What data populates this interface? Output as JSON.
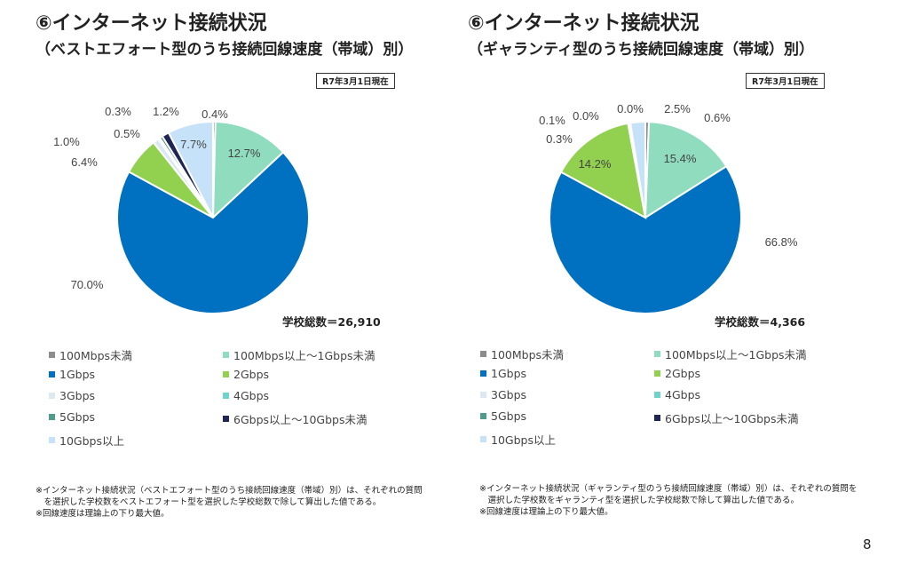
{
  "colors": [
    "#8c8c8c",
    "#8fdcbf",
    "#0070c0",
    "#92d050",
    "#dde9f2",
    "#6fd3cc",
    "#4e9c8c",
    "#1f2654",
    "#c6e2f8"
  ],
  "legend_labels": [
    "100Mbps未満",
    "100Mbps以上～1Gbps未満",
    "1Gbps",
    "2Gbps",
    "3Gbps",
    "4Gbps",
    "5Gbps",
    "6Gbps以上～10Gbps未満",
    "10Gbps以上"
  ],
  "charts": [
    {
      "title": "⑥インターネット接続状況",
      "subtitle": "（ベストエフォート型のうち接続回線速度（帯域）別）",
      "date": "R7年3月1日現在",
      "total": "学校総数＝26,910",
      "notes": [
        "※インターネット接続状況（ベストエフォート型のうち接続回線速度（帯域）別）は、それぞれの質問",
        "　を選択した学校数をベストエフォート型を選択した学校総数で除して算出した値である。",
        "※回線速度は理論上の下り最大値。"
      ]
    },
    {
      "title": "⑥インターネット接続状況",
      "subtitle": "（ギャランティ型のうち接続回線速度（帯域）別）",
      "date": "R7年3月1日現在",
      "total": "学校総数＝4,366",
      "notes": [
        "※インターネット接続状況（ギャランティ型のうち接続回線速度（帯域）別）は、それぞれの質問を",
        "　選択した学校数をギャランティ型を選択した学校総数で除して算出した値である。",
        "※回線速度は理論上の下り最大値。"
      ]
    }
  ],
  "chart_data": [
    {
      "type": "pie",
      "categories": [
        "100Mbps未満",
        "100Mbps以上～1Gbps未満",
        "1Gbps",
        "2Gbps",
        "3Gbps",
        "4Gbps",
        "5Gbps",
        "6Gbps以上～10Gbps未満",
        "10Gbps以上"
      ],
      "values": [
        0.4,
        12.7,
        70.0,
        6.4,
        1.0,
        0.3,
        0.5,
        1.2,
        7.7
      ],
      "labels": [
        "0.4%",
        "12.7%",
        "70.0%",
        "6.4%",
        "1.0%",
        "0.3%",
        "0.5%",
        "1.2%",
        "7.7%"
      ],
      "legend": "bottom"
    },
    {
      "type": "pie",
      "categories": [
        "100Mbps未満",
        "100Mbps以上～1Gbps未満",
        "1Gbps",
        "2Gbps",
        "3Gbps",
        "4Gbps",
        "5Gbps",
        "6Gbps以上～10Gbps未満",
        "10Gbps以上"
      ],
      "values": [
        0.6,
        15.4,
        66.8,
        14.2,
        0.3,
        0.1,
        0.0,
        0.0,
        2.5
      ],
      "labels": [
        "0.6%",
        "15.4%",
        "66.8%",
        "14.2%",
        "0.3%",
        "0.1%",
        "0.0%",
        "0.0%",
        "2.5%"
      ],
      "legend": "bottom"
    }
  ],
  "page_number": "8"
}
